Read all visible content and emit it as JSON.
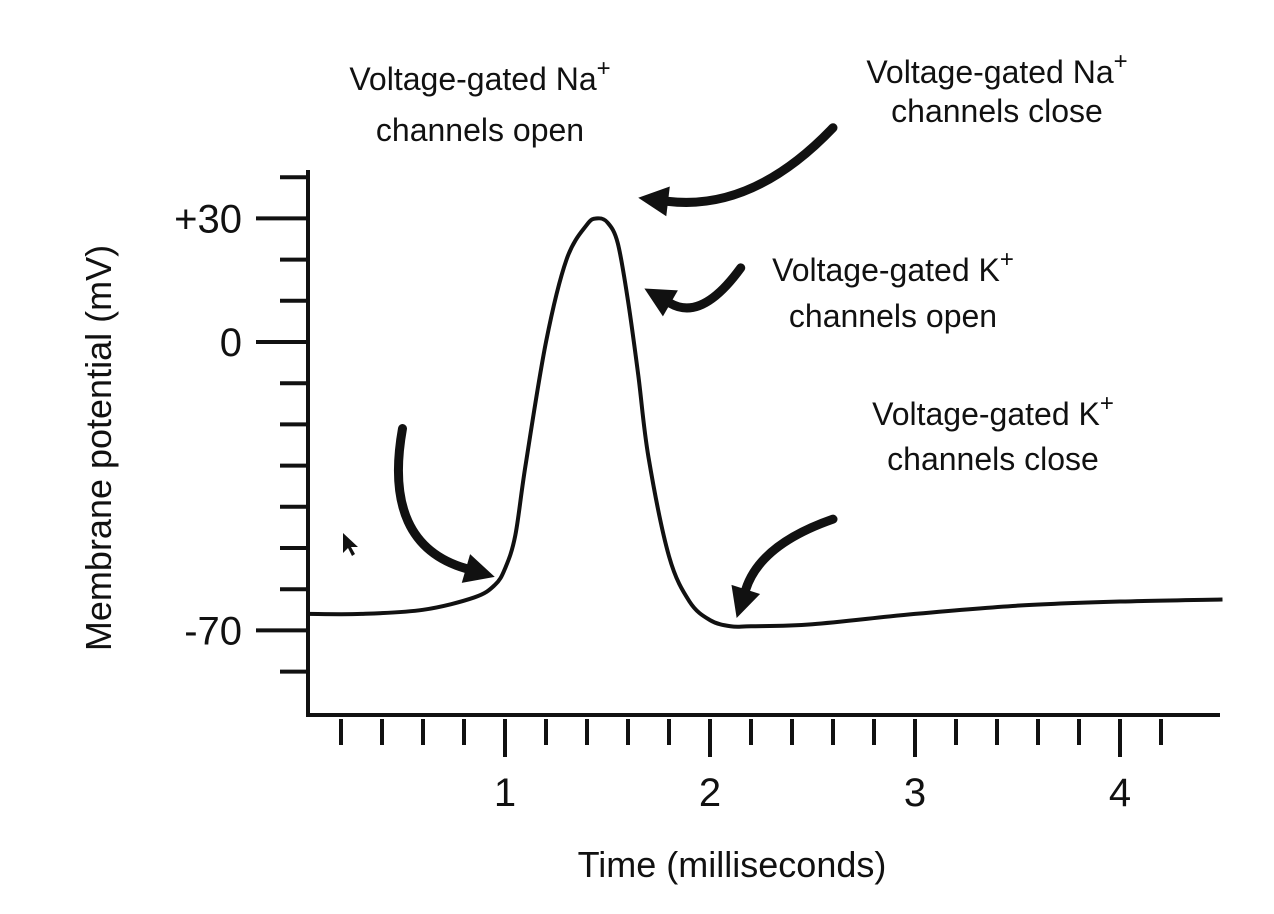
{
  "chart_data": {
    "type": "line",
    "title": "",
    "xlabel": "Time (milliseconds)",
    "ylabel": "Membrane potential (mV)",
    "xlim": [
      0,
      4.5
    ],
    "ylim": [
      -90,
      40
    ],
    "x_ticks": [
      {
        "value": 1,
        "label": "1"
      },
      {
        "value": 2,
        "label": "2"
      },
      {
        "value": 3,
        "label": "3"
      },
      {
        "value": 4,
        "label": "4"
      }
    ],
    "y_ticks": [
      {
        "value": 30,
        "label": "+30"
      },
      {
        "value": 0,
        "label": "0"
      },
      {
        "value": -70,
        "label": "-70"
      }
    ],
    "x_minor_step": 0.2,
    "y_minor_step": 10,
    "grid": false,
    "series": [
      {
        "x": [
          0,
          0.3,
          0.6,
          0.85,
          0.95,
          1.0,
          1.05,
          1.1,
          1.2,
          1.3,
          1.4,
          1.45,
          1.5,
          1.55,
          1.6,
          1.65,
          1.7,
          1.8,
          1.9,
          2.0,
          2.1,
          2.2,
          2.5,
          3.0,
          3.5,
          4.0,
          4.5
        ],
        "y": [
          -66,
          -66,
          -65,
          -62,
          -59,
          -55,
          -47,
          -30,
          0,
          20,
          28.5,
          30,
          29,
          24,
          10,
          -8,
          -28,
          -52,
          -63,
          -67.5,
          -69,
          -69,
          -68.5,
          -66,
          -64,
          -63,
          -62.5
        ]
      }
    ],
    "annotations": [
      {
        "text": "Voltage-gated Na",
        "sup": "+",
        "text2": "channels open",
        "from": [
          0.5,
          -21
        ],
        "to": [
          0.95,
          -57
        ]
      },
      {
        "text": "Voltage-gated Na",
        "sup": "+",
        "text2": "channels close",
        "from": [
          2.6,
          52
        ],
        "to": [
          1.65,
          35
        ]
      },
      {
        "text": "Voltage-gated K",
        "sup": "+",
        "text2": "channels open",
        "from": [
          2.15,
          18
        ],
        "to": [
          1.68,
          13
        ]
      },
      {
        "text": "Voltage-gated K",
        "sup": "+",
        "text2": "channels close",
        "from": [
          2.6,
          -43
        ],
        "to": [
          2.13,
          -67
        ]
      }
    ]
  }
}
